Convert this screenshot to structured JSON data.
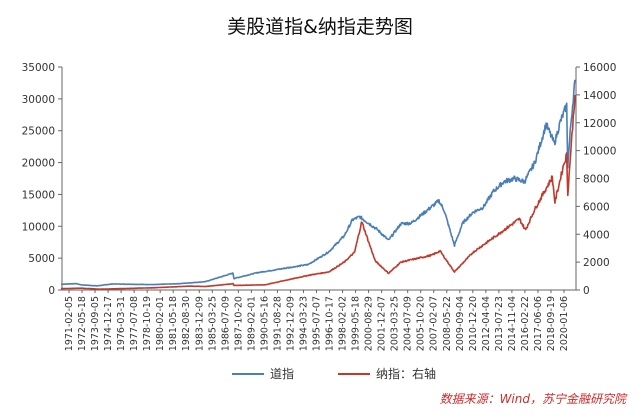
{
  "chart_data": {
    "type": "line",
    "title": "美股道指&纳指走势图",
    "source": "数据来源：Wind，苏宁金融研究院",
    "left_axis": {
      "min": 0,
      "max": 35000,
      "ticks": [
        "0",
        "5000",
        "10000",
        "15000",
        "20000",
        "25000",
        "30000",
        "35000"
      ]
    },
    "right_axis": {
      "min": 0,
      "max": 16000,
      "ticks": [
        "0",
        "2000",
        "4000",
        "6000",
        "8000",
        "10000",
        "12000",
        "14000",
        "16000"
      ]
    },
    "x_tick_labels": [
      "1971-02-05",
      "1972-05-18",
      "1973-09-05",
      "1974-12-17",
      "1976-03-31",
      "1977-07-08",
      "1978-10-19",
      "1980-02-01",
      "1981-05-18",
      "1982-08-30",
      "1983-12-09",
      "1985-03-25",
      "1986-07-09",
      "1987-10-20",
      "1989-02-01",
      "1990-05-16",
      "1991-08-28",
      "1992-12-09",
      "1994-03-23",
      "1995-07-07",
      "1996-10-17",
      "1998-02-02",
      "1999-05-18",
      "2000-08-29",
      "2001-12-07",
      "2003-03-25",
      "2004-07-09",
      "2005-10-20",
      "2007-02-07",
      "2008-05-22",
      "2009-09-04",
      "2010-12-20",
      "2012-04-04",
      "2013-07-23",
      "2014-11-04",
      "2016-02-22",
      "2017-06-06",
      "2018-09-19",
      "2020-01-06"
    ],
    "series": [
      {
        "name": "道指",
        "axis": "left",
        "color": "#4a7ebb",
        "x": [
          1971,
          1972.5,
          1973,
          1974.5,
          1976,
          1980,
          1982.5,
          1985,
          1987.7,
          1987.8,
          1990,
          1995,
          1997,
          1998.5,
          1999.3,
          2000,
          2000.6,
          2001.7,
          2002.8,
          2004,
          2005,
          2006,
          2007.7,
          2008.2,
          2009.2,
          2010,
          2011,
          2012,
          2013,
          2014,
          2015,
          2016,
          2017,
          2018.1,
          2018.9,
          2019.5,
          2020.1,
          2020.2,
          2020.5,
          2020.9
        ],
        "values": [
          900,
          1000,
          800,
          650,
          950,
          850,
          1000,
          1300,
          2650,
          1800,
          2700,
          4000,
          6000,
          8500,
          11000,
          11500,
          10800,
          9500,
          7800,
          10400,
          10500,
          11800,
          14000,
          12500,
          7000,
          10500,
          12200,
          13000,
          15500,
          17000,
          17500,
          17000,
          20000,
          26000,
          23000,
          26500,
          29000,
          19500,
          26000,
          33000
        ]
      },
      {
        "name": "纳指：右轴",
        "axis": "right",
        "color": "#c0392b",
        "x": [
          1971,
          1973,
          1974.8,
          1980,
          1983.5,
          1985,
          1987.7,
          1987.8,
          1990.8,
          1995,
          1997,
          1998.5,
          1999.5,
          2000.2,
          2000.8,
          2001.5,
          2002.8,
          2004,
          2007,
          2007.8,
          2009.2,
          2011,
          2014,
          2015.5,
          2016.1,
          2017,
          2018.7,
          2018.95,
          2019.8,
          2020.1,
          2020.2,
          2020.5,
          2020.9
        ],
        "values": [
          100,
          130,
          60,
          160,
          280,
          250,
          450,
          330,
          370,
          1050,
          1300,
          2000,
          2700,
          4900,
          3600,
          2100,
          1200,
          2000,
          2500,
          2800,
          1300,
          2700,
          4300,
          5100,
          4300,
          5800,
          8100,
          6300,
          9000,
          9700,
          6900,
          10000,
          14000
        ]
      }
    ]
  }
}
